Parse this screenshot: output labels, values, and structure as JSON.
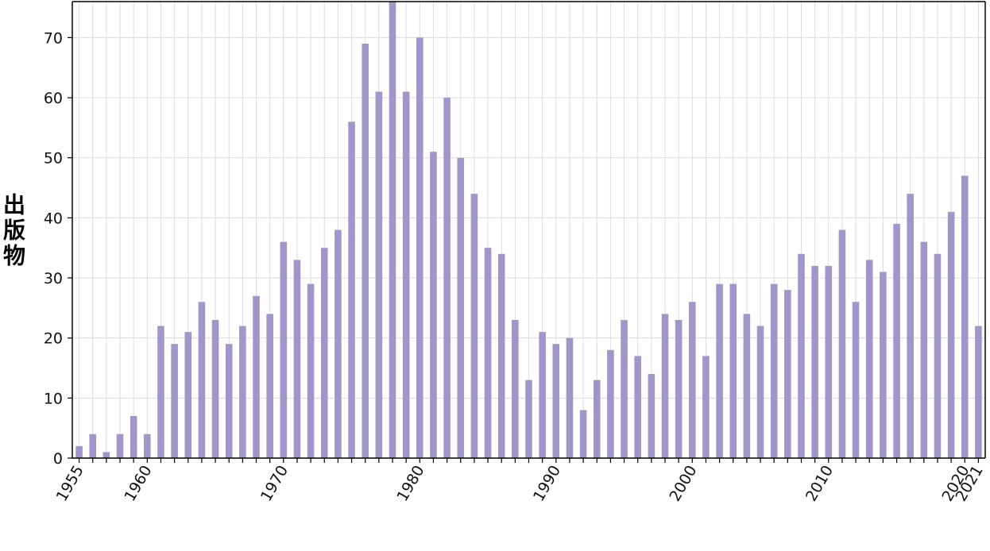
{
  "chart_data": {
    "type": "bar",
    "title": "",
    "xlabel": "",
    "ylabel": "出版物",
    "x": [
      1955,
      1956,
      1957,
      1958,
      1959,
      1960,
      1961,
      1962,
      1963,
      1964,
      1965,
      1966,
      1967,
      1968,
      1969,
      1970,
      1971,
      1972,
      1973,
      1974,
      1975,
      1976,
      1977,
      1978,
      1979,
      1980,
      1981,
      1982,
      1983,
      1984,
      1985,
      1986,
      1987,
      1988,
      1989,
      1990,
      1991,
      1992,
      1993,
      1994,
      1995,
      1996,
      1997,
      1998,
      1999,
      2000,
      2001,
      2002,
      2003,
      2004,
      2005,
      2006,
      2007,
      2008,
      2009,
      2010,
      2011,
      2012,
      2013,
      2014,
      2015,
      2016,
      2017,
      2018,
      2019,
      2020,
      2021
    ],
    "values": [
      2,
      4,
      1,
      4,
      7,
      4,
      22,
      19,
      21,
      26,
      23,
      19,
      22,
      27,
      24,
      36,
      33,
      29,
      35,
      38,
      56,
      69,
      61,
      76,
      61,
      70,
      51,
      60,
      50,
      44,
      35,
      34,
      23,
      13,
      21,
      19,
      20,
      8,
      13,
      18,
      23,
      17,
      14,
      24,
      23,
      26,
      17,
      29,
      29,
      24,
      22,
      29,
      28,
      34,
      32,
      32,
      38,
      26,
      33,
      31,
      39,
      44,
      36,
      34,
      41,
      47,
      22
    ],
    "xlim": [
      1955,
      2021
    ],
    "ylim": [
      0,
      76
    ],
    "x_ticks": [
      "1955",
      "1960",
      "1970",
      "1980",
      "1990",
      "2000",
      "2010",
      "2020",
      "2021"
    ],
    "y_ticks": [
      "0",
      "10",
      "20",
      "30",
      "40",
      "50",
      "60",
      "70"
    ],
    "grid": true,
    "bar_color": "#a195c9"
  }
}
